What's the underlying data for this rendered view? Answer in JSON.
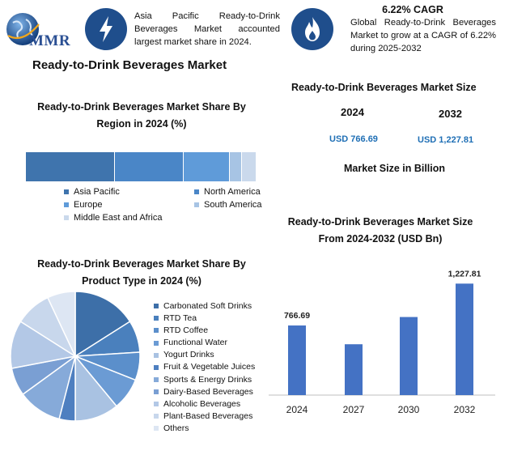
{
  "header": {
    "logo_text": "MMR",
    "fact1": "Asia Pacific Ready-to-Drink Beverages Market accounted largest market share in 2024.",
    "cagr_title": "6.22% CAGR",
    "cagr_text": "Global Ready-to-Drink Beverages Market to grow at a CAGR of 6.22% during 2025-2032",
    "icon1": "lightning-bolt-icon",
    "icon2": "flame-icon"
  },
  "page_title": "Ready-to-Drink Beverages Market",
  "size_panel": {
    "title": "Ready-to-Drink Beverages Market Size",
    "year1": "2024",
    "year2": "2032",
    "value1": "USD 766.69",
    "value2": "USD 1,227.81",
    "caption": "Market Size in Billion",
    "value_color": "#1f6fb5"
  },
  "chart_data": [
    {
      "type": "bar",
      "orientation": "horizontal-stacked",
      "title": "Ready-to-Drink Beverages Market Share By Region in 2024 (%)",
      "series": [
        {
          "name": "Asia Pacific",
          "value": 39,
          "color": "#3f74ad"
        },
        {
          "name": "North America",
          "value": 30,
          "color": "#4a86c7"
        },
        {
          "name": "Europe",
          "value": 20,
          "color": "#5f9bd9"
        },
        {
          "name": "South America",
          "value": 5,
          "color": "#a7c4e4"
        },
        {
          "name": "Middle East and Africa",
          "value": 6,
          "color": "#cad9ec"
        }
      ]
    },
    {
      "type": "pie",
      "title": "Ready-to-Drink Beverages Market Share By Product Type in 2024 (%)",
      "categories": [
        "Carbonated Soft Drinks",
        "RTD Tea",
        "RTD Coffee",
        "Functional Water",
        "Yogurt Drinks",
        "Fruit & Vegetable Juices",
        "Sports & Energy Drinks",
        "Dairy-Based Beverages",
        "Alcoholic Beverages",
        "Plant-Based Beverages",
        "Others"
      ],
      "values": [
        16,
        8,
        7,
        8,
        11,
        4,
        11,
        7,
        12,
        9,
        7
      ],
      "colors": [
        "#3d6fa8",
        "#4a80bd",
        "#5b8fcb",
        "#6b9bd4",
        "#a9c2e2",
        "#4e7fc0",
        "#86aad9",
        "#7a9fd3",
        "#b3c8e6",
        "#c8d7ec",
        "#dde6f3"
      ]
    },
    {
      "type": "bar",
      "title": "Ready-to-Drink Beverages Market Size From 2024-2032 (USD Bn)",
      "categories": [
        "2024",
        "2027",
        "2030",
        "2032"
      ],
      "values": [
        766.69,
        560,
        860,
        1227.81
      ],
      "data_labels": [
        "766.69",
        "",
        "",
        "1,227.81"
      ],
      "color": "#4472c4",
      "ylim": [
        0,
        1400
      ]
    }
  ]
}
